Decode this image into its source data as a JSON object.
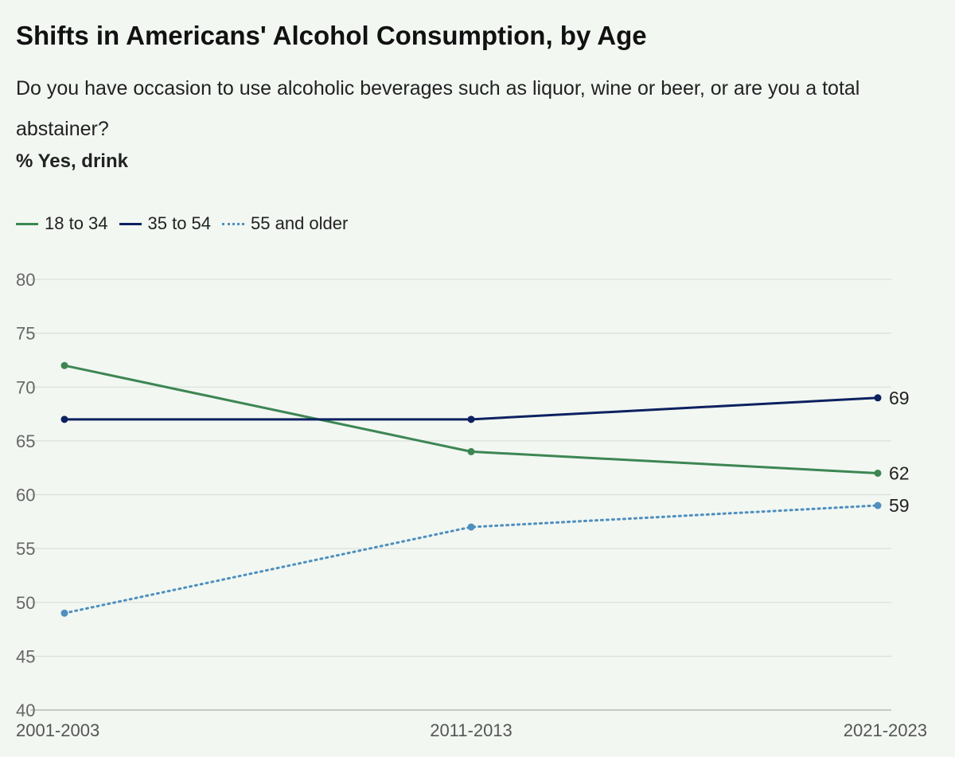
{
  "header": {
    "title": "Shifts in Americans' Alcohol Consumption, by Age",
    "subtitle": "Do you have occasion to use alcoholic beverages such as liquor, wine or beer, or are you a total abstainer?",
    "measure": "% Yes, drink"
  },
  "chart_data": {
    "type": "line",
    "title": "Shifts in Americans' Alcohol Consumption, by Age",
    "subtitle": "Do you have occasion to use alcoholic beverages such as liquor, wine or beer, or are you a total abstainer?",
    "ylabel": "% Yes, drink",
    "xlabel": "",
    "x": [
      "2001-2003",
      "2011-2013",
      "2021-2023"
    ],
    "ylim": [
      40,
      80
    ],
    "yticks": [
      80,
      75,
      70,
      65,
      60,
      55,
      50,
      45,
      40
    ],
    "grid": true,
    "legend_position": "top-left",
    "series": [
      {
        "name": "18 to 34",
        "values": [
          72,
          64,
          62
        ],
        "color": "#3d8653",
        "style": "solid",
        "end_label": "62"
      },
      {
        "name": "35 to 54",
        "values": [
          67,
          67,
          69
        ],
        "color": "#0c2160",
        "style": "solid",
        "end_label": "69"
      },
      {
        "name": "55 and older",
        "values": [
          49,
          57,
          59
        ],
        "color": "#4e8fbf",
        "style": "dotted",
        "end_label": "59"
      }
    ]
  }
}
